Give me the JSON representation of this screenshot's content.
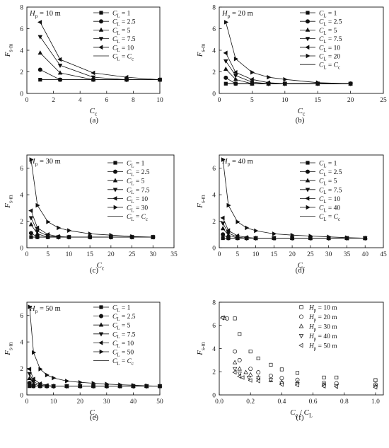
{
  "chart_data": [
    {
      "type": "line",
      "caption": "(a)",
      "annotation": "Hp = 10 m",
      "ylabel": "Fs-m",
      "xlabel": "Cc",
      "xlim": [
        0,
        10
      ],
      "ylim": [
        0,
        8
      ],
      "xticks": [
        0,
        2,
        4,
        6,
        8,
        10
      ],
      "yticks": [
        0,
        2,
        4,
        6,
        8
      ],
      "legend_position": "top-right",
      "series": [
        {
          "name": "CL = 1",
          "marker": "square",
          "x": [
            1,
            2.5,
            5,
            7.5,
            10
          ],
          "y": [
            1.27,
            1.27,
            1.27,
            1.27,
            1.27
          ]
        },
        {
          "name": "CL = 2.5",
          "marker": "circle",
          "x": [
            1,
            2.5,
            5,
            7.5,
            10
          ],
          "y": [
            2.2,
            1.27,
            1.27,
            1.27,
            1.27
          ]
        },
        {
          "name": "CL = 5",
          "marker": "triangle-up",
          "x": [
            1,
            2.5,
            5,
            7.5,
            10
          ],
          "y": [
            3.75,
            1.9,
            1.27,
            1.27,
            1.27
          ]
        },
        {
          "name": "CL = 7.5",
          "marker": "triangle-down",
          "x": [
            1,
            2.5,
            5,
            7.5,
            10
          ],
          "y": [
            5.25,
            2.6,
            1.5,
            1.27,
            1.27
          ]
        },
        {
          "name": "CL = 10",
          "marker": "triangle-left",
          "x": [
            1,
            2.5,
            5,
            7.5,
            10
          ],
          "y": [
            6.6,
            3.15,
            1.9,
            1.5,
            1.27
          ]
        },
        {
          "name": "CL = Cc",
          "marker": "none",
          "x": [
            1,
            10
          ],
          "y": [
            1.27,
            1.27
          ]
        }
      ]
    },
    {
      "type": "line",
      "caption": "(b)",
      "annotation": "Hp = 20 m",
      "ylabel": "Fs-m",
      "xlabel": "Cc",
      "xlim": [
        0,
        25
      ],
      "ylim": [
        0,
        8
      ],
      "xticks": [
        0,
        5,
        10,
        15,
        20,
        25
      ],
      "yticks": [
        0,
        2,
        4,
        6,
        8
      ],
      "legend_position": "top-right",
      "series": [
        {
          "name": "CL = 1",
          "marker": "square",
          "x": [
            1,
            2.5,
            5,
            7.5,
            10,
            15,
            20
          ],
          "y": [
            0.9,
            0.9,
            0.9,
            0.9,
            0.9,
            0.9,
            0.9
          ]
        },
        {
          "name": "CL = 2.5",
          "marker": "circle",
          "x": [
            1,
            2.5,
            5,
            7.5,
            10,
            15,
            20
          ],
          "y": [
            1.45,
            0.9,
            0.9,
            0.9,
            0.9,
            0.9,
            0.9
          ]
        },
        {
          "name": "CL = 5",
          "marker": "triangle-up",
          "x": [
            1,
            2.5,
            5,
            7.5,
            10,
            15,
            20
          ],
          "y": [
            2.25,
            1.3,
            0.9,
            0.9,
            0.9,
            0.9,
            0.9
          ]
        },
        {
          "name": "CL = 7.5",
          "marker": "triangle-down",
          "x": [
            1,
            2.5,
            5,
            7.5,
            10,
            15,
            20
          ],
          "y": [
            3.0,
            1.65,
            1.05,
            0.9,
            0.9,
            0.9,
            0.9
          ]
        },
        {
          "name": "CL = 10",
          "marker": "triangle-left",
          "x": [
            1,
            2.5,
            5,
            7.5,
            10,
            15,
            20
          ],
          "y": [
            3.75,
            1.95,
            1.3,
            1.0,
            0.9,
            0.9,
            0.9
          ]
        },
        {
          "name": "CL = 20",
          "marker": "triangle-right",
          "x": [
            1,
            2.5,
            5,
            7.5,
            10,
            15,
            20
          ],
          "y": [
            6.6,
            3.2,
            1.95,
            1.5,
            1.3,
            1.0,
            0.9
          ]
        },
        {
          "name": "CL = Cc",
          "marker": "none",
          "x": [
            1,
            20
          ],
          "y": [
            0.9,
            0.9
          ]
        }
      ]
    },
    {
      "type": "line",
      "caption": "(c)",
      "annotation": "Hp = 30 m",
      "ylabel": "Fs-m",
      "xlabel": "Cc",
      "xlim": [
        0,
        35
      ],
      "ylim": [
        0,
        7
      ],
      "xticks": [
        0,
        5,
        10,
        15,
        20,
        25,
        30,
        35
      ],
      "yticks": [
        0,
        2,
        4,
        6
      ],
      "legend_position": "top-right",
      "series": [
        {
          "name": "CL = 1",
          "marker": "square",
          "x": [
            1,
            2.5,
            5,
            7.5,
            10,
            15,
            20,
            25,
            30
          ],
          "y": [
            0.8,
            0.8,
            0.8,
            0.8,
            0.8,
            0.8,
            0.8,
            0.8,
            0.8
          ]
        },
        {
          "name": "CL = 2.5",
          "marker": "circle",
          "x": [
            1,
            2.5,
            5,
            7.5,
            10,
            15,
            20,
            25,
            30
          ],
          "y": [
            1.1,
            0.8,
            0.8,
            0.8,
            0.8,
            0.8,
            0.8,
            0.8,
            0.8
          ]
        },
        {
          "name": "CL = 5",
          "marker": "triangle-up",
          "x": [
            1,
            2.5,
            5,
            7.5,
            10,
            15,
            20,
            25,
            30
          ],
          "y": [
            1.75,
            1.05,
            0.8,
            0.8,
            0.8,
            0.8,
            0.8,
            0.8,
            0.8
          ]
        },
        {
          "name": "CL = 7.5",
          "marker": "triangle-down",
          "x": [
            1,
            2.5,
            5,
            7.5,
            10,
            15,
            20,
            25,
            30
          ],
          "y": [
            2.25,
            1.25,
            0.9,
            0.8,
            0.8,
            0.8,
            0.8,
            0.8,
            0.8
          ]
        },
        {
          "name": "CL = 10",
          "marker": "triangle-left",
          "x": [
            1,
            2.5,
            5,
            7.5,
            10,
            15,
            20,
            25,
            30
          ],
          "y": [
            2.8,
            1.5,
            1.0,
            0.85,
            0.8,
            0.8,
            0.8,
            0.8,
            0.8
          ]
        },
        {
          "name": "CL = 30",
          "marker": "triangle-right",
          "x": [
            1,
            2.5,
            5,
            7.5,
            10,
            15,
            20,
            25,
            30
          ],
          "y": [
            6.65,
            3.2,
            1.95,
            1.5,
            1.3,
            1.05,
            0.95,
            0.85,
            0.8
          ]
        },
        {
          "name": "CL = Cc",
          "marker": "none",
          "x": [
            1,
            30
          ],
          "y": [
            0.8,
            0.8
          ]
        }
      ]
    },
    {
      "type": "line",
      "caption": "(d)",
      "annotation": "Hp = 40 m",
      "ylabel": "Fs-m",
      "xlabel": "Cc",
      "xlim": [
        0,
        45
      ],
      "ylim": [
        0,
        7
      ],
      "xticks": [
        0,
        5,
        10,
        15,
        20,
        25,
        30,
        35,
        40,
        45
      ],
      "yticks": [
        0,
        2,
        4,
        6
      ],
      "legend_position": "top-right",
      "series": [
        {
          "name": "CL = 1",
          "marker": "square",
          "x": [
            1,
            2.5,
            5,
            7.5,
            10,
            15,
            20,
            25,
            30,
            35,
            40
          ],
          "y": [
            0.72,
            0.72,
            0.72,
            0.72,
            0.72,
            0.72,
            0.72,
            0.72,
            0.72,
            0.72,
            0.72
          ]
        },
        {
          "name": "CL = 2.5",
          "marker": "circle",
          "x": [
            1,
            2.5,
            5,
            7.5,
            10,
            15,
            20,
            25,
            30,
            35,
            40
          ],
          "y": [
            1.0,
            0.72,
            0.72,
            0.72,
            0.72,
            0.72,
            0.72,
            0.72,
            0.72,
            0.72,
            0.72
          ]
        },
        {
          "name": "CL = 5",
          "marker": "triangle-up",
          "x": [
            1,
            2.5,
            5,
            7.5,
            10,
            15,
            20,
            25,
            30,
            35,
            40
          ],
          "y": [
            1.45,
            0.95,
            0.72,
            0.72,
            0.72,
            0.72,
            0.72,
            0.72,
            0.72,
            0.72,
            0.72
          ]
        },
        {
          "name": "CL = 7.5",
          "marker": "triangle-down",
          "x": [
            1,
            2.5,
            5,
            7.5,
            10,
            15,
            20,
            25,
            30,
            35,
            40
          ],
          "y": [
            1.85,
            1.1,
            0.8,
            0.72,
            0.72,
            0.72,
            0.72,
            0.72,
            0.72,
            0.72,
            0.72
          ]
        },
        {
          "name": "CL = 10",
          "marker": "triangle-left",
          "x": [
            1,
            2.5,
            5,
            7.5,
            10,
            15,
            20,
            25,
            30,
            35,
            40
          ],
          "y": [
            2.25,
            1.3,
            0.9,
            0.78,
            0.72,
            0.72,
            0.72,
            0.72,
            0.72,
            0.72,
            0.72
          ]
        },
        {
          "name": "CL = 40",
          "marker": "triangle-right",
          "x": [
            1,
            2.5,
            5,
            7.5,
            10,
            15,
            20,
            25,
            30,
            35,
            40
          ],
          "y": [
            6.65,
            3.2,
            1.95,
            1.5,
            1.28,
            1.05,
            0.95,
            0.88,
            0.82,
            0.76,
            0.72
          ]
        },
        {
          "name": "CL = Cc",
          "marker": "none",
          "x": [
            1,
            40
          ],
          "y": [
            0.72,
            0.72
          ]
        }
      ]
    },
    {
      "type": "line",
      "caption": "(e)",
      "annotation": "Hp = 50 m",
      "ylabel": "Fs-m",
      "xlabel": "Cc",
      "xlim": [
        0,
        50
      ],
      "ylim": [
        0,
        7
      ],
      "xticks": [
        0,
        10,
        20,
        30,
        40,
        50
      ],
      "yticks": [
        0,
        2,
        4,
        6
      ],
      "legend_position": "top-right",
      "series": [
        {
          "name": "CL = 1",
          "marker": "square",
          "x": [
            1,
            2.5,
            5,
            7.5,
            10,
            15,
            20,
            25,
            30,
            35,
            40,
            45,
            50
          ],
          "y": [
            0.66,
            0.66,
            0.66,
            0.66,
            0.66,
            0.66,
            0.66,
            0.66,
            0.66,
            0.66,
            0.66,
            0.66,
            0.66
          ]
        },
        {
          "name": "CL = 2.5",
          "marker": "circle",
          "x": [
            1,
            2.5,
            5,
            7.5,
            10,
            15,
            20,
            25,
            30,
            35,
            40,
            45,
            50
          ],
          "y": [
            0.9,
            0.66,
            0.66,
            0.66,
            0.66,
            0.66,
            0.66,
            0.66,
            0.66,
            0.66,
            0.66,
            0.66,
            0.66
          ]
        },
        {
          "name": "CL = 5",
          "marker": "triangle-up",
          "x": [
            1,
            2.5,
            5,
            7.5,
            10,
            15,
            20,
            25,
            30,
            35,
            40,
            45,
            50
          ],
          "y": [
            1.25,
            0.85,
            0.66,
            0.66,
            0.66,
            0.66,
            0.66,
            0.66,
            0.66,
            0.66,
            0.66,
            0.66,
            0.66
          ]
        },
        {
          "name": "CL = 7.5",
          "marker": "triangle-down",
          "x": [
            1,
            2.5,
            5,
            7.5,
            10,
            15,
            20,
            25,
            30,
            35,
            40,
            45,
            50
          ],
          "y": [
            1.6,
            1.0,
            0.75,
            0.66,
            0.66,
            0.66,
            0.66,
            0.66,
            0.66,
            0.66,
            0.66,
            0.66,
            0.66
          ]
        },
        {
          "name": "CL = 10",
          "marker": "triangle-left",
          "x": [
            1,
            2.5,
            5,
            7.5,
            10,
            15,
            20,
            25,
            30,
            35,
            40,
            45,
            50
          ],
          "y": [
            1.95,
            1.2,
            0.85,
            0.72,
            0.66,
            0.66,
            0.66,
            0.66,
            0.66,
            0.66,
            0.66,
            0.66,
            0.66
          ]
        },
        {
          "name": "CL = 50",
          "marker": "triangle-right",
          "x": [
            1,
            2.5,
            5,
            7.5,
            10,
            15,
            20,
            25,
            30,
            35,
            40,
            45,
            50
          ],
          "y": [
            6.65,
            3.2,
            1.95,
            1.5,
            1.28,
            1.05,
            0.95,
            0.88,
            0.82,
            0.77,
            0.73,
            0.69,
            0.66
          ]
        },
        {
          "name": "CL = Cc",
          "marker": "none",
          "x": [
            1,
            50
          ],
          "y": [
            0.66,
            0.66
          ]
        }
      ]
    },
    {
      "type": "scatter",
      "caption": "(f)",
      "ylabel": "Fs-m",
      "xlabel": "Cc / CL",
      "xlim": [
        0,
        1.05
      ],
      "ylim": [
        0,
        8
      ],
      "xticks": [
        0.0,
        0.2,
        0.4,
        0.6,
        0.8,
        1.0
      ],
      "yticks": [
        0,
        2,
        4,
        6,
        8
      ],
      "legend_position": "top-right",
      "series": [
        {
          "name": "Hp = 10 m",
          "marker": "square-open",
          "x": [
            0.1,
            0.13,
            0.2,
            0.25,
            0.33,
            0.4,
            0.5,
            0.67,
            0.75,
            1.0,
            1.0
          ],
          "y": [
            6.6,
            5.25,
            3.75,
            3.15,
            2.6,
            2.2,
            1.9,
            1.5,
            1.5,
            1.27,
            1.27
          ]
        },
        {
          "name": "Hp = 20 m",
          "marker": "circle-open",
          "x": [
            0.05,
            0.1,
            0.13,
            0.2,
            0.25,
            0.33,
            0.4,
            0.5,
            0.67,
            0.75,
            1.0
          ],
          "y": [
            6.6,
            3.75,
            3.0,
            2.25,
            1.95,
            1.65,
            1.45,
            1.3,
            1.05,
            1.0,
            0.9
          ]
        },
        {
          "name": "Hp = 30 m",
          "marker": "triangle-up-open",
          "x": [
            0.033,
            0.1,
            0.13,
            0.17,
            0.2,
            0.25,
            0.33,
            0.4,
            0.5,
            0.67,
            1.0
          ],
          "y": [
            6.65,
            2.8,
            2.25,
            1.95,
            1.75,
            1.5,
            1.25,
            1.1,
            1.05,
            0.9,
            0.8
          ]
        },
        {
          "name": "Hp = 40 m",
          "marker": "triangle-down-open",
          "x": [
            0.025,
            0.1,
            0.13,
            0.19,
            0.25,
            0.33,
            0.4,
            0.5,
            0.67,
            0.75,
            1.0
          ],
          "y": [
            6.65,
            2.25,
            1.85,
            1.5,
            1.45,
            1.3,
            1.0,
            0.95,
            0.8,
            0.78,
            0.72
          ]
        },
        {
          "name": "Hp = 50 m",
          "marker": "triangle-left-open",
          "x": [
            0.02,
            0.1,
            0.13,
            0.15,
            0.2,
            0.25,
            0.4,
            0.5,
            0.67,
            0.75,
            1.0
          ],
          "y": [
            6.65,
            1.95,
            1.6,
            1.5,
            1.25,
            1.2,
            0.9,
            0.85,
            0.75,
            0.72,
            0.66
          ]
        }
      ]
    }
  ]
}
